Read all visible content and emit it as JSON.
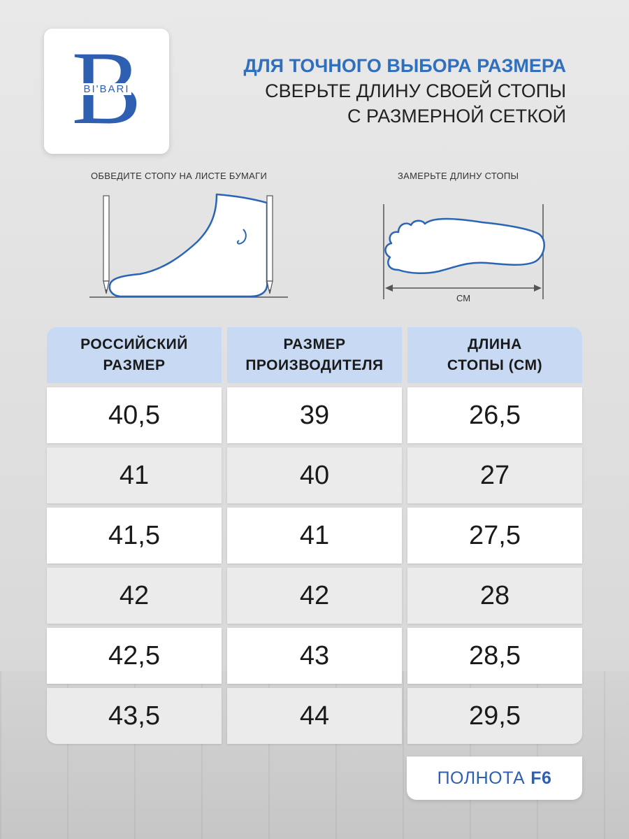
{
  "brand": {
    "logo_letter": "B",
    "logo_text": "BI'BARI"
  },
  "headline": {
    "bold": "ДЛЯ ТОЧНОГО ВЫБОРА РАЗМЕРА",
    "line1": "СВЕРЬТЕ ДЛИНУ СВОЕЙ СТОПЫ",
    "line2": "С РАЗМЕРНОЙ СЕТКОЙ"
  },
  "instructions": {
    "left_caption": "ОБВЕДИТЕ СТОПУ НА ЛИСТЕ БУМАГИ",
    "right_caption": "ЗАМЕРЬТЕ ДЛИНУ СТОПЫ",
    "unit": "СМ"
  },
  "table": {
    "headers": [
      [
        "РОССИЙСКИЙ",
        "РАЗМЕР"
      ],
      [
        "РАЗМЕР",
        "ПРОИЗВОДИТЕЛЯ"
      ],
      [
        "ДЛИНА",
        "СТОПЫ (СМ)"
      ]
    ],
    "rows": [
      [
        "40,5",
        "39",
        "26,5"
      ],
      [
        "41",
        "40",
        "27"
      ],
      [
        "41,5",
        "41",
        "27,5"
      ],
      [
        "42",
        "42",
        "28"
      ],
      [
        "42,5",
        "43",
        "28,5"
      ],
      [
        "43,5",
        "44",
        "29,5"
      ]
    ]
  },
  "fullness": {
    "label": "ПОЛНОТА",
    "value": "F6"
  },
  "colors": {
    "accent": "#2f6fbd",
    "outline": "#2a64b4",
    "header_bg": "#c7d9f3"
  }
}
